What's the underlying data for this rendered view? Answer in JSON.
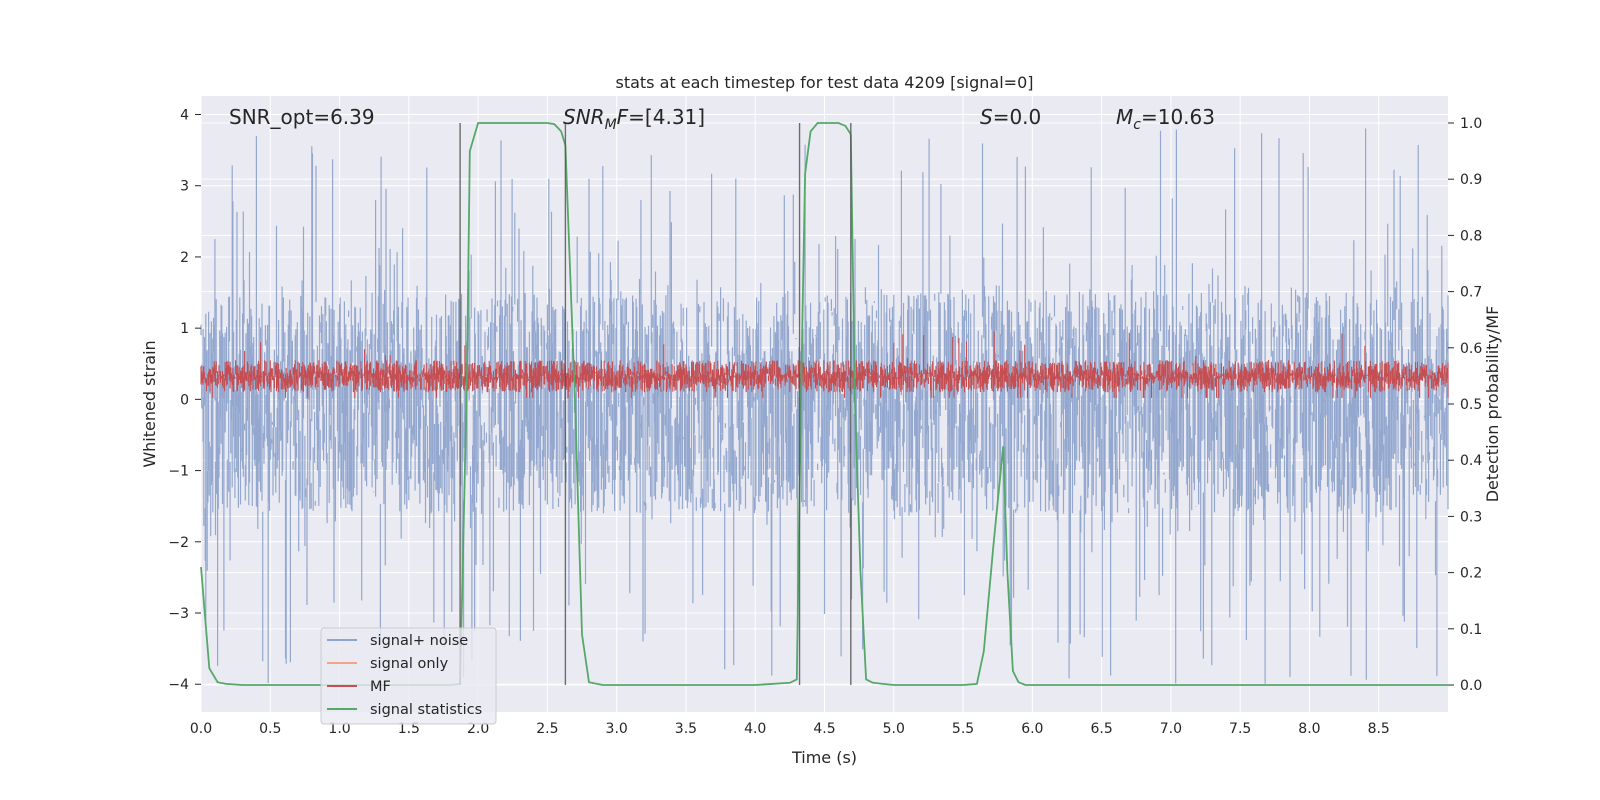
{
  "chart_data": {
    "type": "line",
    "title": "stats at each timestep for test data 4209 [signal=0]",
    "xlabel": "Time (s)",
    "ylabel": "Whitened strain",
    "y2label": "Detection probability/MF",
    "xlim": [
      0.0,
      9.0
    ],
    "ylim": [
      -4.39,
      4.26
    ],
    "y2lim": [
      -0.048,
      1.048
    ],
    "xticks": [
      "0.0",
      "0.5",
      "1.0",
      "1.5",
      "2.0",
      "2.5",
      "3.0",
      "3.5",
      "4.0",
      "4.5",
      "5.0",
      "5.5",
      "6.0",
      "6.5",
      "7.0",
      "7.5",
      "8.0",
      "8.5"
    ],
    "yticks": [
      "−4",
      "−3",
      "−2",
      "−1",
      "0",
      "1",
      "2",
      "3",
      "4"
    ],
    "y2ticks": [
      "0.0",
      "0.1",
      "0.2",
      "0.3",
      "0.4",
      "0.5",
      "0.6",
      "0.7",
      "0.8",
      "0.9",
      "1.0"
    ],
    "grid": true,
    "legend_position": "lower-left",
    "annotations": [
      {
        "prefix": "SNR_opt=6.39",
        "sub": "",
        "suffix": ""
      },
      {
        "prefix": "SNR",
        "sub": "M",
        "suffix": "F=[4.31]"
      },
      {
        "prefix": "S",
        "sub": "",
        "suffix": "=0.0"
      },
      {
        "prefix": "M",
        "sub": "c",
        "suffix": "=10.63"
      }
    ],
    "vertical_lines_x": [
      1.87,
      2.63,
      4.32,
      4.69
    ],
    "series": [
      {
        "name": "signal+ noise",
        "color": "#8fa4cc",
        "axis": "left",
        "render": "dense-noise",
        "sample_interval": 0.005,
        "typical_range": [
          -1.6,
          1.5
        ],
        "extremes": [
          -4.0,
          3.9
        ]
      },
      {
        "name": "signal only",
        "color": "#f1a585",
        "axis": "left",
        "values_constant": 0
      },
      {
        "name": "MF",
        "color": "#c44e52",
        "axis": "left",
        "render": "dense-noise",
        "sample_interval": 0.005,
        "typical_range": [
          0.1,
          0.55
        ],
        "extremes": [
          0.02,
          1.0
        ]
      },
      {
        "name": "signal statistics",
        "color": "#55a868",
        "axis": "right",
        "x": [
          0.0,
          0.06,
          0.12,
          0.18,
          0.3,
          0.5,
          1.0,
          1.5,
          1.8,
          1.87,
          1.92,
          1.94,
          2.0,
          2.2,
          2.4,
          2.5,
          2.55,
          2.6,
          2.63,
          2.7,
          2.75,
          2.8,
          2.9,
          3.0,
          3.5,
          4.0,
          4.25,
          4.3,
          4.33,
          4.36,
          4.4,
          4.45,
          4.5,
          4.55,
          4.6,
          4.65,
          4.69,
          4.72,
          4.76,
          4.8,
          4.85,
          5.0,
          5.5,
          5.6,
          5.65,
          5.72,
          5.79,
          5.82,
          5.86,
          5.9,
          5.95,
          6.0,
          6.5,
          7.0,
          8.0,
          9.0
        ],
        "values": [
          0.21,
          0.03,
          0.005,
          0.002,
          0.0,
          0.0,
          0.0,
          0.0,
          0.0,
          0.002,
          0.55,
          0.95,
          1.0,
          1.0,
          1.0,
          1.0,
          0.998,
          0.985,
          0.96,
          0.5,
          0.09,
          0.005,
          0.0,
          0.0,
          0.0,
          0.0,
          0.004,
          0.01,
          0.5,
          0.91,
          0.985,
          1.0,
          1.0,
          1.0,
          1.0,
          0.995,
          0.98,
          0.5,
          0.2,
          0.01,
          0.004,
          0.0,
          0.0,
          0.002,
          0.06,
          0.25,
          0.425,
          0.2,
          0.025,
          0.005,
          0.0,
          0.0,
          0.0,
          0.0,
          0.0,
          0.0
        ]
      }
    ]
  }
}
